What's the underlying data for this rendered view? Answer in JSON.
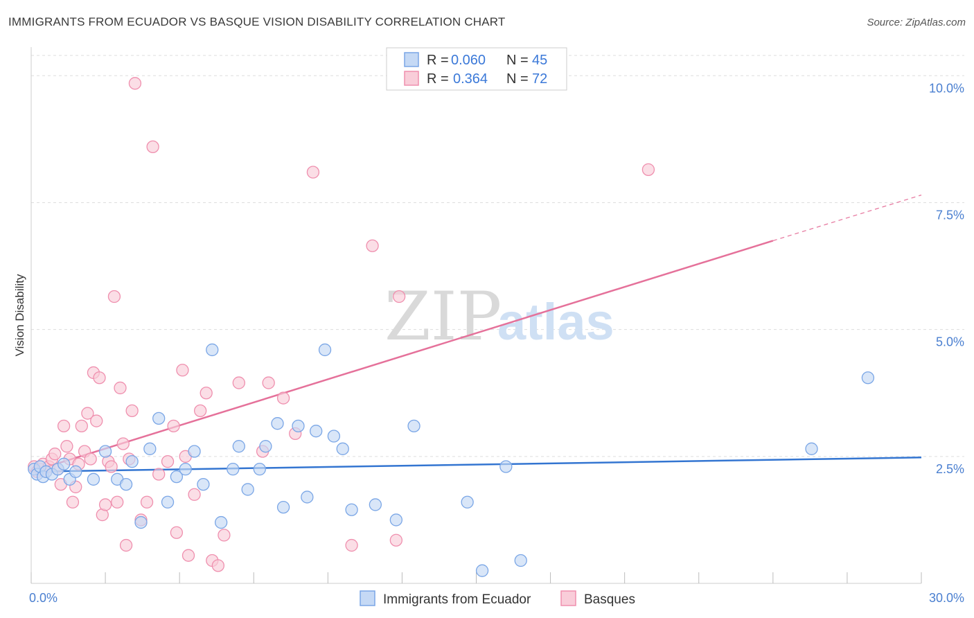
{
  "title": "IMMIGRANTS FROM ECUADOR VS BASQUE VISION DISABILITY CORRELATION CHART",
  "source": "Source: ZipAtlas.com",
  "watermark": {
    "zip": "ZIP",
    "atlas": "atlas"
  },
  "legend": {
    "rows": [
      {
        "r_label": "R =",
        "r_value": "0.060",
        "n_label": "N =",
        "n_value": "45"
      },
      {
        "r_label": "R =",
        "r_value": "0.364",
        "n_label": "N =",
        "n_value": "72"
      }
    ]
  },
  "colors": {
    "blue_fill": "#c5d9f5",
    "blue_stroke": "#7aa6e6",
    "blue_line": "#3375d1",
    "pink_fill": "#f9cdd9",
    "pink_stroke": "#ef8fae",
    "pink_line": "#e5719a",
    "grid": "#dddddd",
    "tick_text": "#4a7fd0"
  },
  "chart_data": {
    "type": "scatter",
    "xlabel": "",
    "ylabel": "Vision Disability",
    "xlim": [
      0,
      30
    ],
    "ylim": [
      0,
      10.4
    ],
    "x_tick_labels": [
      {
        "value": 0,
        "label": "0.0%"
      },
      {
        "value": 30,
        "label": "30.0%"
      }
    ],
    "y_ticks": [
      {
        "value": 2.5,
        "label": "2.5%"
      },
      {
        "value": 5.0,
        "label": "5.0%"
      },
      {
        "value": 7.5,
        "label": "7.5%"
      },
      {
        "value": 10.0,
        "label": "10.0%"
      }
    ],
    "grid": "horizontal dashed",
    "legend_position": "top-center",
    "series": [
      {
        "name": "Immigrants from Ecuador",
        "color": "#7aa6e6",
        "r": 0.06,
        "n": 45,
        "trend": {
          "x": [
            0,
            30
          ],
          "y": [
            2.2,
            2.48
          ]
        },
        "points": [
          [
            0.1,
            2.25
          ],
          [
            0.2,
            2.15
          ],
          [
            0.3,
            2.3
          ],
          [
            0.4,
            2.1
          ],
          [
            0.5,
            2.2
          ],
          [
            0.7,
            2.15
          ],
          [
            0.9,
            2.25
          ],
          [
            1.1,
            2.35
          ],
          [
            1.3,
            2.05
          ],
          [
            1.5,
            2.2
          ],
          [
            2.1,
            2.05
          ],
          [
            2.5,
            2.6
          ],
          [
            2.9,
            2.05
          ],
          [
            3.2,
            1.95
          ],
          [
            3.4,
            2.4
          ],
          [
            3.7,
            1.2
          ],
          [
            4.0,
            2.65
          ],
          [
            4.3,
            3.25
          ],
          [
            4.6,
            1.6
          ],
          [
            4.9,
            2.1
          ],
          [
            5.2,
            2.25
          ],
          [
            5.5,
            2.6
          ],
          [
            5.8,
            1.95
          ],
          [
            6.1,
            4.6
          ],
          [
            6.4,
            1.2
          ],
          [
            6.8,
            2.25
          ],
          [
            7.0,
            2.7
          ],
          [
            7.3,
            1.85
          ],
          [
            7.7,
            2.25
          ],
          [
            7.9,
            2.7
          ],
          [
            8.3,
            3.15
          ],
          [
            8.5,
            1.5
          ],
          [
            9.0,
            3.1
          ],
          [
            9.3,
            1.7
          ],
          [
            9.6,
            3.0
          ],
          [
            9.9,
            4.6
          ],
          [
            10.2,
            2.9
          ],
          [
            10.5,
            2.65
          ],
          [
            10.8,
            1.45
          ],
          [
            11.6,
            1.55
          ],
          [
            12.3,
            1.25
          ],
          [
            12.9,
            3.1
          ],
          [
            14.7,
            1.6
          ],
          [
            15.2,
            0.25
          ],
          [
            16.0,
            2.3
          ],
          [
            16.5,
            0.45
          ],
          [
            26.3,
            2.65
          ],
          [
            28.2,
            4.05
          ]
        ]
      },
      {
        "name": "Basques",
        "color": "#ef8fae",
        "r": 0.364,
        "n": 72,
        "trend": {
          "x": [
            0,
            25
          ],
          "y": [
            2.2,
            6.75
          ],
          "dashed_extension": {
            "x": [
              25,
              30
            ],
            "y": [
              6.75,
              7.65
            ]
          }
        },
        "points": [
          [
            0.1,
            2.3
          ],
          [
            0.2,
            2.2
          ],
          [
            0.3,
            2.25
          ],
          [
            0.4,
            2.35
          ],
          [
            0.5,
            2.2
          ],
          [
            0.6,
            2.3
          ],
          [
            0.7,
            2.45
          ],
          [
            0.8,
            2.55
          ],
          [
            0.9,
            2.25
          ],
          [
            1.0,
            1.95
          ],
          [
            1.1,
            3.1
          ],
          [
            1.2,
            2.7
          ],
          [
            1.3,
            2.45
          ],
          [
            1.4,
            1.6
          ],
          [
            1.5,
            1.9
          ],
          [
            1.6,
            2.35
          ],
          [
            1.7,
            3.1
          ],
          [
            1.8,
            2.6
          ],
          [
            1.9,
            3.35
          ],
          [
            2.0,
            2.45
          ],
          [
            2.1,
            4.15
          ],
          [
            2.2,
            3.2
          ],
          [
            2.3,
            4.05
          ],
          [
            2.4,
            1.35
          ],
          [
            2.5,
            1.55
          ],
          [
            2.6,
            2.4
          ],
          [
            2.7,
            2.3
          ],
          [
            2.8,
            5.65
          ],
          [
            2.9,
            1.6
          ],
          [
            3.0,
            3.85
          ],
          [
            3.1,
            2.75
          ],
          [
            3.2,
            0.75
          ],
          [
            3.3,
            2.45
          ],
          [
            3.4,
            3.4
          ],
          [
            3.5,
            9.85
          ],
          [
            3.7,
            1.25
          ],
          [
            3.9,
            1.6
          ],
          [
            4.1,
            8.6
          ],
          [
            4.3,
            2.15
          ],
          [
            4.6,
            2.4
          ],
          [
            4.8,
            3.1
          ],
          [
            4.9,
            1.0
          ],
          [
            5.1,
            4.2
          ],
          [
            5.2,
            2.5
          ],
          [
            5.3,
            0.55
          ],
          [
            5.5,
            1.75
          ],
          [
            5.7,
            3.4
          ],
          [
            5.9,
            3.75
          ],
          [
            6.1,
            0.45
          ],
          [
            6.3,
            0.35
          ],
          [
            6.5,
            0.95
          ],
          [
            7.0,
            3.95
          ],
          [
            7.8,
            2.6
          ],
          [
            8.0,
            3.95
          ],
          [
            8.5,
            3.65
          ],
          [
            8.9,
            2.95
          ],
          [
            9.5,
            8.1
          ],
          [
            10.8,
            0.75
          ],
          [
            11.5,
            6.65
          ],
          [
            12.3,
            0.85
          ],
          [
            12.4,
            5.65
          ],
          [
            20.8,
            8.15
          ]
        ]
      }
    ]
  },
  "bottom_legend": [
    {
      "label": "Immigrants from Ecuador"
    },
    {
      "label": "Basques"
    }
  ]
}
